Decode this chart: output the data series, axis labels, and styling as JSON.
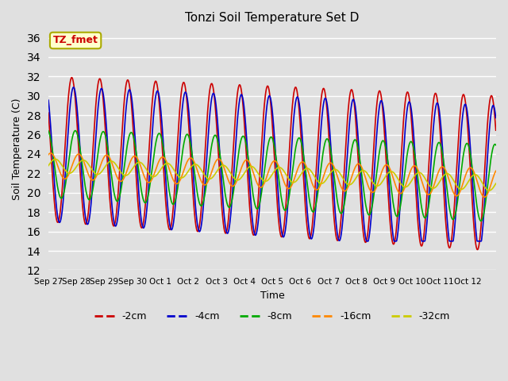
{
  "title": "Tonzi Soil Temperature Set D",
  "xlabel": "Time",
  "ylabel": "Soil Temperature (C)",
  "ylim": [
    12,
    37
  ],
  "yticks": [
    12,
    14,
    16,
    18,
    20,
    22,
    24,
    26,
    28,
    30,
    32,
    34,
    36
  ],
  "background_color": "#e0e0e0",
  "plot_bg_color": "#e0e0e0",
  "grid_color": "#ffffff",
  "legend_label": "TZ_fmet",
  "series_colors": {
    "-2cm": "#cc0000",
    "-4cm": "#0000cc",
    "-8cm": "#00aa00",
    "-16cm": "#ff8800",
    "-32cm": "#cccc00"
  },
  "xtick_labels": [
    "Sep 27",
    "Sep 28",
    "Sep 29",
    "Sep 30",
    "Oct 1",
    "Oct 2",
    "Oct 3",
    "Oct 4",
    "Oct 5",
    "Oct 6",
    "Oct 7",
    "Oct 8",
    "Oct 9",
    "Oct 10",
    "Oct 11",
    "Oct 12"
  ],
  "n_days": 16
}
